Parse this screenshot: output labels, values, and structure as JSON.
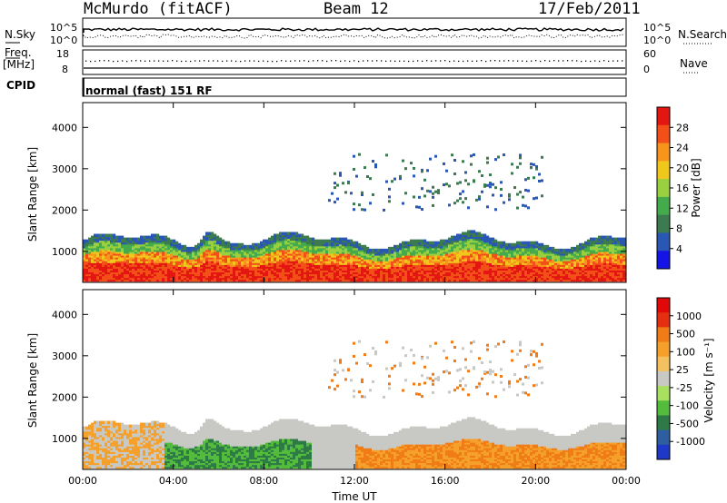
{
  "header": {
    "station": "McMurdo (fitACF)",
    "beam": "Beam 12",
    "date": "17/Feb/2011"
  },
  "strip": {
    "nsky_label": "N.Sky",
    "nsearch_label": "N.Search",
    "noise_tick_hi": "10^5",
    "noise_tick_lo": "10^0",
    "freq_label_1": "Freq.",
    "freq_label_2": "[MHz]",
    "freq_ticks": [
      "18",
      "8"
    ],
    "nave_label": "Nave",
    "nave_ticks": [
      "60",
      "0"
    ],
    "cpid_label": "CPID",
    "cpid_value": "normal (fast) 151 RF"
  },
  "chart_data": [
    {
      "type": "heatmap",
      "title": "",
      "ylabel": "Slant Range [km]",
      "xlabel": "",
      "ylim": [
        250,
        4600
      ],
      "yticks": [
        "1000",
        "2000",
        "3000",
        "4000"
      ],
      "xticks": [
        "00:00",
        "04:00",
        "08:00",
        "12:00",
        "16:00",
        "20:00",
        "00:00"
      ],
      "colorbar_label": "Power [dB]",
      "colorbar_ticks": [
        "28",
        "24",
        "20",
        "16",
        "12",
        "8",
        "4"
      ],
      "colorbar_colors": [
        "#1414e6",
        "#2a56b4",
        "#3c7a50",
        "#44ab4c",
        "#9ad040",
        "#f0c81c",
        "#f8941c",
        "#f25018",
        "#e41612"
      ]
    },
    {
      "type": "heatmap",
      "title": "",
      "ylabel": "Slant Range [km]",
      "xlabel": "Time UT",
      "ylim": [
        250,
        4600
      ],
      "yticks": [
        "1000",
        "2000",
        "3000",
        "4000"
      ],
      "xticks": [
        "00:00",
        "04:00",
        "08:00",
        "12:00",
        "16:00",
        "20:00",
        "00:00"
      ],
      "colorbar_label": "Velocity [m s⁻¹]",
      "colorbar_ticks": [
        "1000",
        "500",
        "100",
        "25",
        "-25",
        "-100",
        "-500",
        "-1000"
      ],
      "colorbar_colors": [
        "#2038c8",
        "#2e5ea0",
        "#2e7a46",
        "#54bc3c",
        "#a8e060",
        "#c8c8c4",
        "#f5c060",
        "#f5a02a",
        "#f07c18",
        "#e43010",
        "#e00808"
      ]
    }
  ]
}
